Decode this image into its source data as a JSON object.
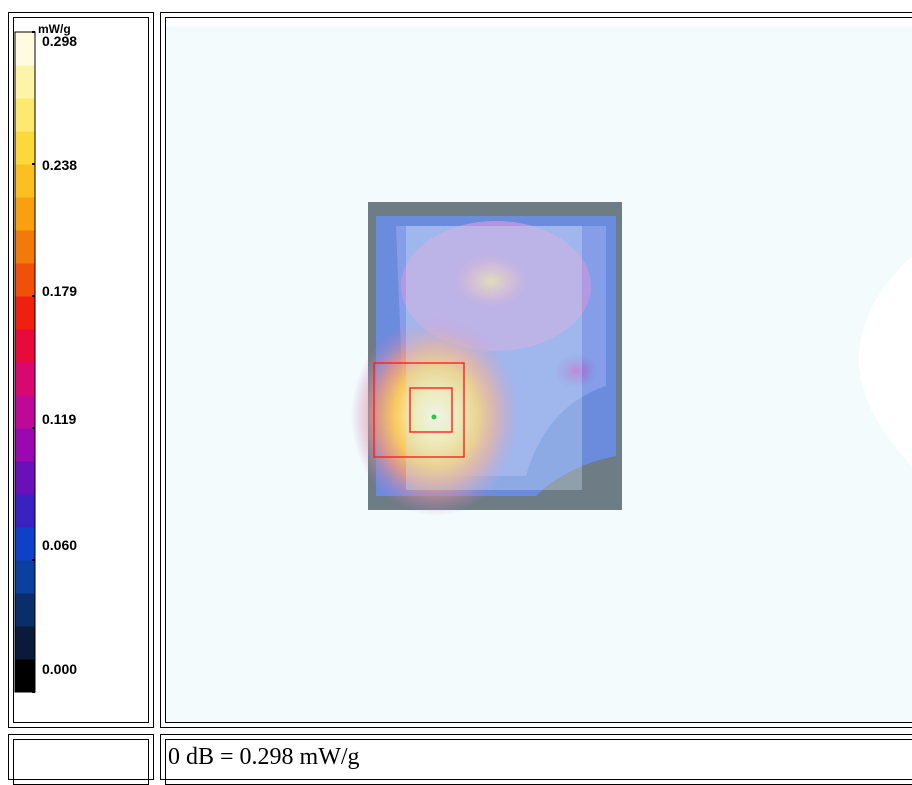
{
  "legend": {
    "unit": "mW/g",
    "ticks": [
      "0.298",
      "0.238",
      "0.179",
      "0.119",
      "0.060",
      "0.000"
    ],
    "color_stops": [
      "#000000",
      "#0b1a3a",
      "#0a2e6a",
      "#0b3fa0",
      "#1040c8",
      "#3a22c0",
      "#6a10b8",
      "#9a08b0",
      "#c00898",
      "#d80870",
      "#e80a3a",
      "#f02010",
      "#f05008",
      "#f27a08",
      "#f8a010",
      "#fbc020",
      "#fcd83a",
      "#fde870",
      "#fef4a8",
      "#fefbe0"
    ]
  },
  "map": {
    "background": "#f4fbfd",
    "marker_color": "#ff2020",
    "peak_color": "#22cc44"
  },
  "caption": {
    "text": "0 dB = 0.298 mW/g"
  }
}
